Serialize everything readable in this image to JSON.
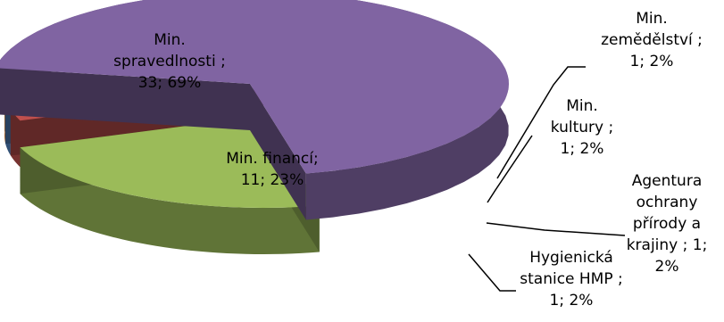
{
  "chart_data": {
    "type": "pie",
    "three_d": true,
    "legend": "none",
    "slices": [
      {
        "name": "Min. spravedlnosti",
        "value": 33,
        "percent": "69%",
        "color": "#8064a2",
        "label_lines": [
          "Min.",
          "spravedlnosti ;",
          "33; 69%"
        ]
      },
      {
        "name": "Min. financí",
        "value": 11,
        "percent": "23%",
        "color": "#9bbb59",
        "label_lines": [
          "Min. financí;",
          "11; 23%"
        ]
      },
      {
        "name": "Hygienická stanice HMP",
        "value": 1,
        "percent": "2%",
        "color": "#c0504d",
        "label_lines": [
          "Hygienická",
          "stanice HMP ;",
          "1; 2%"
        ]
      },
      {
        "name": "Agentura ochrany přírody a krajiny",
        "value": 1,
        "percent": "2%",
        "color": "#4f81bd",
        "label_lines": [
          "Agentura",
          "ochrany",
          "přírody a",
          "krajiny ; 1;",
          "2%"
        ]
      },
      {
        "name": "Min. kultury",
        "value": 1,
        "percent": "2%",
        "color": "#f79646",
        "label_lines": [
          "Min.",
          "kultury ;",
          "1; 2%"
        ]
      },
      {
        "name": "Min. zemědělství",
        "value": 1,
        "percent": "2%",
        "color": "#4bacc6",
        "label_lines": [
          "Min.",
          "zemědělství ;",
          "1; 2%"
        ]
      }
    ]
  }
}
